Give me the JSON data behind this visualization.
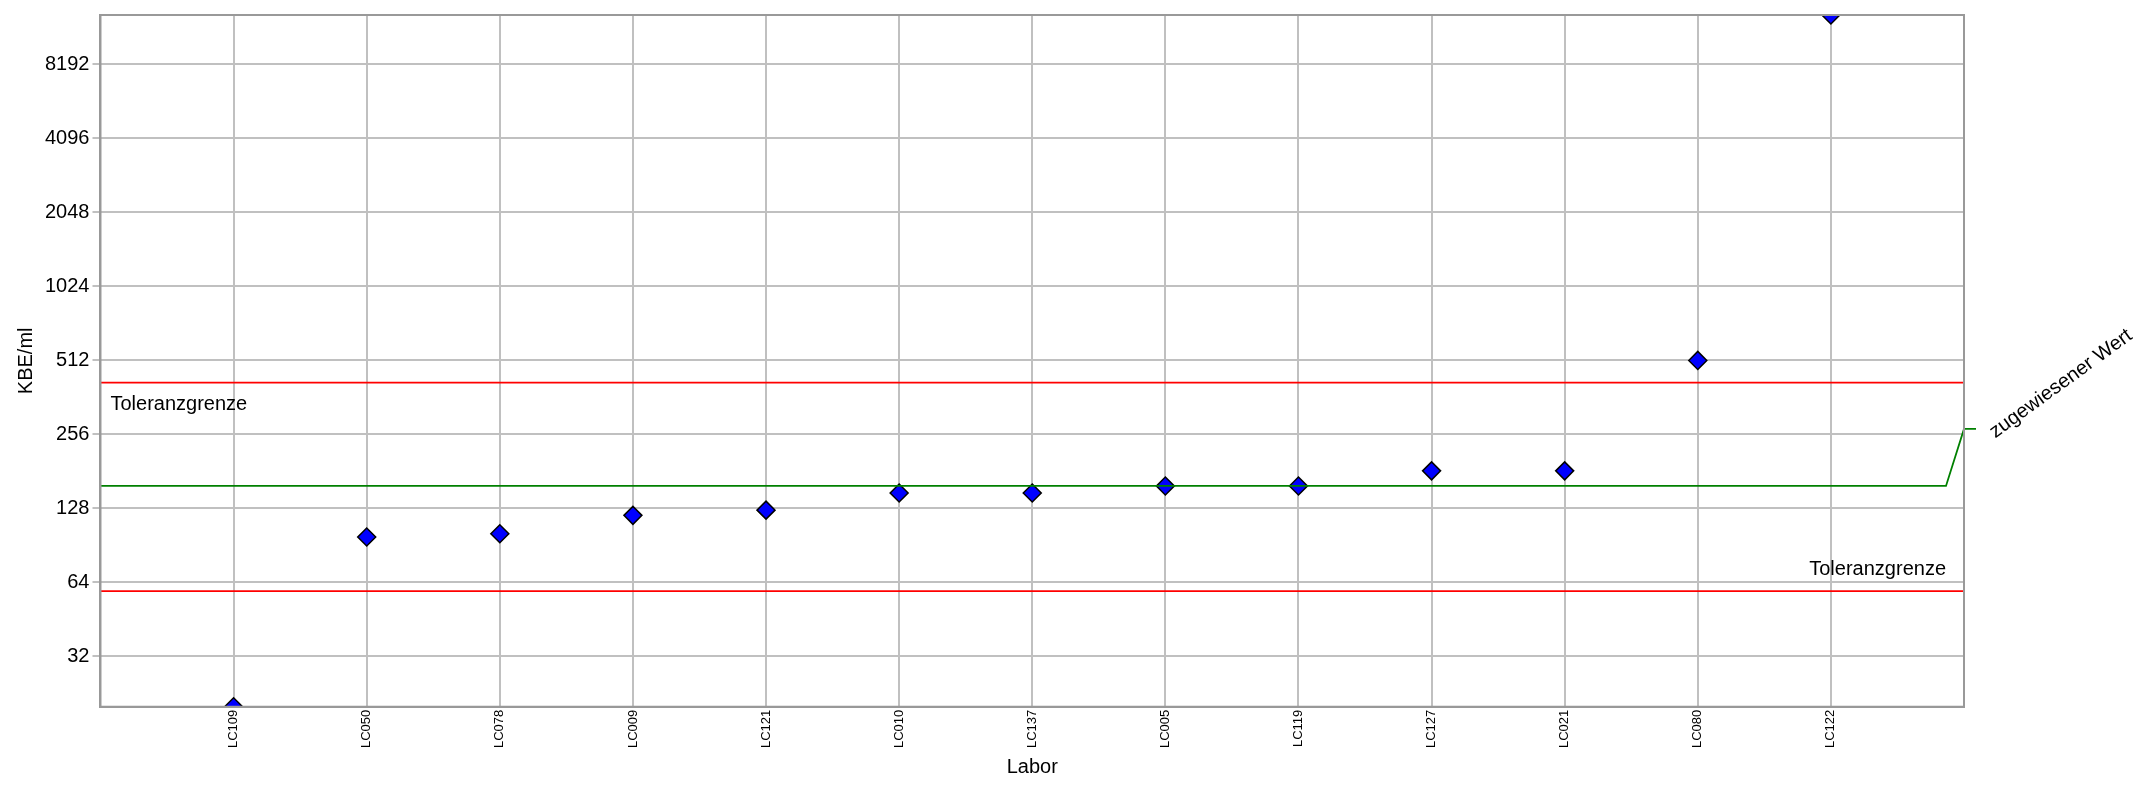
{
  "chart_data": {
    "type": "scatter",
    "xlabel": "Labor",
    "ylabel": "KBE/ml",
    "categories": [
      "LC109",
      "LC050",
      "LC078",
      "LC009",
      "LC121",
      "LC010",
      "LC137",
      "LC005",
      "LC119",
      "LC127",
      "LC021",
      "LC080",
      "LC122"
    ],
    "series": [
      {
        "color": "#0000ff",
        "values": [
          20,
          98,
          101,
          120,
          126,
          148,
          148,
          158,
          158,
          182,
          182,
          512,
          13000
        ]
      }
    ],
    "marker": "diamond",
    "log": "y",
    "grid": true,
    "legend": false,
    "ylim": [
      20,
      13000
    ],
    "yticks": [
      32,
      64,
      128,
      256,
      512,
      1024,
      2048,
      4096,
      8192
    ],
    "ref_lines": [
      {
        "axis": "y",
        "value": 416,
        "label": "Toleranzgrenze",
        "color": "#ff0000"
      },
      {
        "axis": "y",
        "value": 59,
        "label": "Toleranzgrenze",
        "color": "#ff0000"
      },
      {
        "axis": "y",
        "value": 158,
        "label": "zugewiesener Wert",
        "color": "#008000"
      }
    ]
  }
}
